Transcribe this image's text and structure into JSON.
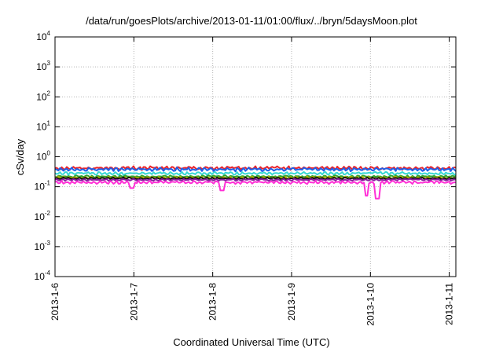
{
  "chart_data": {
    "type": "line",
    "title": "/data/run/goesPlots/archive/2013-01-11/01:00/flux/../bryn/5daysMoon.plot",
    "xlabel": "Coordinated Universal Time (UTC)",
    "ylabel": "cSv/day",
    "yscale": "log",
    "ylim": [
      0.0001,
      10000
    ],
    "xlim": [
      "2013-1-6",
      "2013-1-11 02:00"
    ],
    "grid": true,
    "x_ticks": [
      "2013-1-6",
      "2013-1-7",
      "2013-1-8",
      "2013-1-9",
      "2013-1-10",
      "2013-1-11"
    ],
    "y_ticks": [
      {
        "value": 0.0001,
        "base": "10",
        "exp": "-4"
      },
      {
        "value": 0.001,
        "base": "10",
        "exp": "-3"
      },
      {
        "value": 0.01,
        "base": "10",
        "exp": "-2"
      },
      {
        "value": 0.1,
        "base": "10",
        "exp": "-1"
      },
      {
        "value": 1,
        "base": "10",
        "exp": "0"
      },
      {
        "value": 10,
        "base": "10",
        "exp": "1"
      },
      {
        "value": 100,
        "base": "10",
        "exp": "2"
      },
      {
        "value": 1000,
        "base": "10",
        "exp": "3"
      },
      {
        "value": 10000,
        "base": "10",
        "exp": "4"
      }
    ],
    "series": [
      {
        "color": "#e8232a",
        "level": 0.42,
        "noise": 0.12,
        "dips": []
      },
      {
        "color": "#1f5ee8",
        "level": 0.38,
        "noise": 0.12,
        "dips": []
      },
      {
        "color": "#38d7d4",
        "level": 0.28,
        "noise": 0.1,
        "dips": []
      },
      {
        "color": "#2fa22f",
        "level": 0.22,
        "noise": 0.08,
        "dips": []
      },
      {
        "color": "#b0b000",
        "level": 0.2,
        "noise": 0.08,
        "dips": []
      },
      {
        "color": "#111111",
        "level": 0.19,
        "noise": 0.07,
        "dips": []
      },
      {
        "color": "#8a1fa0",
        "level": 0.17,
        "noise": 0.07,
        "dips": []
      },
      {
        "color": "#ff2fd6",
        "level": 0.14,
        "noise": 0.1,
        "dips": [
          {
            "day": 0.98,
            "v": 0.09
          },
          {
            "day": 2.12,
            "v": 0.075
          },
          {
            "day": 3.95,
            "v": 0.05
          },
          {
            "day": 4.08,
            "v": 0.04
          }
        ]
      }
    ]
  }
}
